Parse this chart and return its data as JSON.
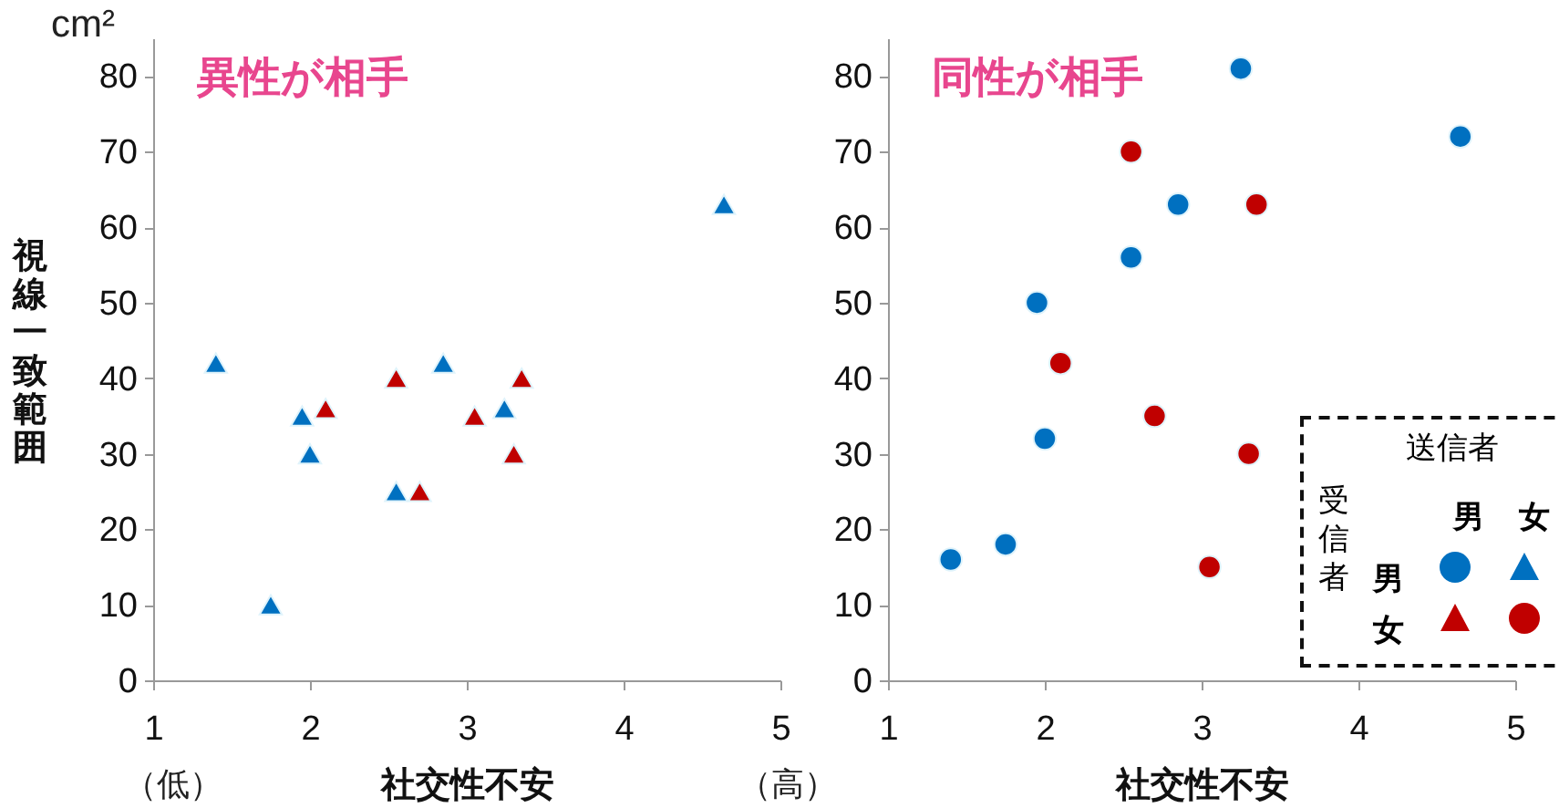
{
  "chart_data": [
    {
      "type": "scatter",
      "title": "異性が相手",
      "xlabel": "社交性不安",
      "ylabel": "視線一致範囲",
      "marker": "triangle",
      "xlim": [
        1,
        5
      ],
      "ylim": [
        0,
        85
      ],
      "xticks": [
        1,
        2,
        3,
        4,
        5
      ],
      "yticks": [
        0,
        10,
        20,
        30,
        40,
        50,
        60,
        70,
        80
      ],
      "series": [
        {
          "color": "#0070c0",
          "x": [
            1.4,
            1.75,
            1.95,
            2.0,
            2.55,
            2.85,
            3.24,
            4.64
          ],
          "values": [
            42,
            10,
            35,
            30,
            25,
            42,
            36,
            63
          ]
        },
        {
          "color": "#c00000",
          "x": [
            2.1,
            2.55,
            2.7,
            3.05,
            3.3,
            3.35
          ],
          "values": [
            36,
            40,
            25,
            35,
            30,
            40
          ]
        }
      ],
      "annotations": [
        "cm²",
        "（低）",
        "（高）"
      ]
    },
    {
      "type": "scatter",
      "title": "同性が相手",
      "xlabel": "社交性不安",
      "marker": "circle",
      "xlim": [
        1,
        5
      ],
      "ylim": [
        0,
        85
      ],
      "xticks": [
        1,
        2,
        3,
        4,
        5
      ],
      "yticks": [
        0,
        10,
        20,
        30,
        40,
        50,
        60,
        70,
        80
      ],
      "series": [
        {
          "color": "#0070c0",
          "x": [
            1.4,
            1.75,
            1.95,
            2.0,
            2.55,
            2.85,
            3.25,
            4.65
          ],
          "values": [
            16,
            18,
            50,
            32,
            56,
            63,
            81,
            72
          ]
        },
        {
          "color": "#c00000",
          "x": [
            2.1,
            2.55,
            2.7,
            3.05,
            3.3,
            3.35
          ],
          "values": [
            42,
            70,
            35,
            15,
            30,
            63
          ]
        }
      ],
      "annotations": [
        "送信者",
        "受信者",
        "男",
        "女",
        "男",
        "女"
      ]
    }
  ]
}
